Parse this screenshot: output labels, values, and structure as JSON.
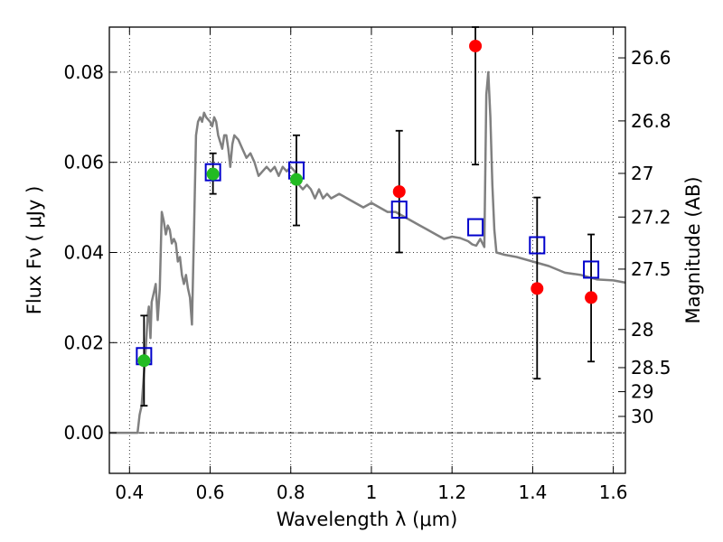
{
  "chart_data": {
    "type": "scatter",
    "title": "",
    "xlabel": "Wavelength  λ (μm)",
    "ylabel": "Flux  Fν  ( μJy )",
    "ylabel_right": "Magnitude (AB)",
    "xlim": [
      0.35,
      1.63
    ],
    "ylim": [
      -0.009,
      0.09
    ],
    "grid": true,
    "xticks": [
      0.4,
      0.6,
      0.8,
      1.0,
      1.2,
      1.4,
      1.6
    ],
    "xtick_labels": [
      "0.4",
      "0.6",
      "0.8",
      "1",
      "1.2",
      "1.4",
      "1.6"
    ],
    "yticks": [
      0.0,
      0.02,
      0.04,
      0.06,
      0.08
    ],
    "ytick_labels": [
      "0.00",
      "0.02",
      "0.04",
      "0.06",
      "0.08"
    ],
    "right_ticks": [
      {
        "label": "26.6",
        "mag": 26.6
      },
      {
        "label": "26.8",
        "mag": 26.8
      },
      {
        "label": "27",
        "mag": 27.0
      },
      {
        "label": "27.2",
        "mag": 27.2
      },
      {
        "label": "27.5",
        "mag": 27.5
      },
      {
        "label": "28",
        "mag": 28.0
      },
      {
        "label": "28.5",
        "mag": 28.5
      },
      {
        "label": "29",
        "mag": 29.0
      },
      {
        "label": "30",
        "mag": 30.0
      }
    ],
    "zero_line": 0.0,
    "series": [
      {
        "kind": "line",
        "color": "#808080",
        "points": [
          [
            0.35,
            0.0
          ],
          [
            0.42,
            0.0
          ],
          [
            0.425,
            0.004
          ],
          [
            0.43,
            0.006
          ],
          [
            0.435,
            0.012
          ],
          [
            0.44,
            0.018
          ],
          [
            0.445,
            0.026
          ],
          [
            0.448,
            0.028
          ],
          [
            0.452,
            0.021
          ],
          [
            0.455,
            0.029
          ],
          [
            0.46,
            0.031
          ],
          [
            0.465,
            0.033
          ],
          [
            0.47,
            0.025
          ],
          [
            0.475,
            0.032
          ],
          [
            0.48,
            0.049
          ],
          [
            0.485,
            0.047
          ],
          [
            0.49,
            0.044
          ],
          [
            0.495,
            0.046
          ],
          [
            0.5,
            0.045
          ],
          [
            0.505,
            0.042
          ],
          [
            0.51,
            0.043
          ],
          [
            0.515,
            0.042
          ],
          [
            0.52,
            0.038
          ],
          [
            0.525,
            0.039
          ],
          [
            0.53,
            0.035
          ],
          [
            0.535,
            0.033
          ],
          [
            0.54,
            0.035
          ],
          [
            0.545,
            0.032
          ],
          [
            0.55,
            0.03
          ],
          [
            0.555,
            0.024
          ],
          [
            0.56,
            0.045
          ],
          [
            0.565,
            0.066
          ],
          [
            0.57,
            0.069
          ],
          [
            0.575,
            0.07
          ],
          [
            0.58,
            0.069
          ],
          [
            0.585,
            0.071
          ],
          [
            0.59,
            0.07
          ],
          [
            0.6,
            0.069
          ],
          [
            0.605,
            0.068
          ],
          [
            0.61,
            0.07
          ],
          [
            0.615,
            0.069
          ],
          [
            0.62,
            0.066
          ],
          [
            0.63,
            0.063
          ],
          [
            0.635,
            0.066
          ],
          [
            0.64,
            0.066
          ],
          [
            0.645,
            0.063
          ],
          [
            0.65,
            0.059
          ],
          [
            0.655,
            0.064
          ],
          [
            0.66,
            0.066
          ],
          [
            0.67,
            0.065
          ],
          [
            0.68,
            0.063
          ],
          [
            0.69,
            0.061
          ],
          [
            0.7,
            0.062
          ],
          [
            0.71,
            0.06
          ],
          [
            0.72,
            0.057
          ],
          [
            0.73,
            0.058
          ],
          [
            0.74,
            0.059
          ],
          [
            0.75,
            0.058
          ],
          [
            0.76,
            0.059
          ],
          [
            0.77,
            0.057
          ],
          [
            0.78,
            0.059
          ],
          [
            0.79,
            0.058
          ],
          [
            0.8,
            0.059
          ],
          [
            0.81,
            0.058
          ],
          [
            0.82,
            0.055
          ],
          [
            0.83,
            0.054
          ],
          [
            0.84,
            0.055
          ],
          [
            0.85,
            0.054
          ],
          [
            0.86,
            0.052
          ],
          [
            0.87,
            0.054
          ],
          [
            0.88,
            0.052
          ],
          [
            0.89,
            0.053
          ],
          [
            0.9,
            0.052
          ],
          [
            0.92,
            0.053
          ],
          [
            0.94,
            0.052
          ],
          [
            0.96,
            0.051
          ],
          [
            0.98,
            0.05
          ],
          [
            1.0,
            0.051
          ],
          [
            1.02,
            0.05
          ],
          [
            1.04,
            0.049
          ],
          [
            1.06,
            0.049
          ],
          [
            1.08,
            0.048
          ],
          [
            1.1,
            0.047
          ],
          [
            1.12,
            0.046
          ],
          [
            1.14,
            0.045
          ],
          [
            1.16,
            0.044
          ],
          [
            1.18,
            0.043
          ],
          [
            1.2,
            0.0435
          ],
          [
            1.22,
            0.0432
          ],
          [
            1.24,
            0.0425
          ],
          [
            1.25,
            0.0418
          ],
          [
            1.26,
            0.0415
          ],
          [
            1.27,
            0.043
          ],
          [
            1.28,
            0.0412
          ],
          [
            1.285,
            0.075
          ],
          [
            1.29,
            0.08
          ],
          [
            1.295,
            0.07
          ],
          [
            1.3,
            0.055
          ],
          [
            1.305,
            0.045
          ],
          [
            1.31,
            0.04
          ],
          [
            1.33,
            0.0395
          ],
          [
            1.36,
            0.039
          ],
          [
            1.4,
            0.038
          ],
          [
            1.44,
            0.037
          ],
          [
            1.48,
            0.0355
          ],
          [
            1.52,
            0.035
          ],
          [
            1.56,
            0.034
          ],
          [
            1.6,
            0.0338
          ],
          [
            1.63,
            0.0333
          ]
        ]
      },
      {
        "kind": "errorbar",
        "color": "#000000",
        "points": [
          {
            "x": 0.436,
            "ylo": 0.006,
            "yhi": 0.026
          },
          {
            "x": 0.607,
            "ylo": 0.053,
            "yhi": 0.062
          },
          {
            "x": 0.814,
            "ylo": 0.046,
            "yhi": 0.066
          },
          {
            "x": 1.069,
            "ylo": 0.04,
            "yhi": 0.067
          },
          {
            "x": 1.258,
            "ylo": 0.0595,
            "yhi": 0.09
          },
          {
            "x": 1.411,
            "ylo": 0.012,
            "yhi": 0.0522
          },
          {
            "x": 1.545,
            "ylo": 0.0158,
            "yhi": 0.044
          }
        ]
      },
      {
        "kind": "squares",
        "color": "#0000cc",
        "points": [
          [
            0.436,
            0.017
          ],
          [
            0.607,
            0.0578
          ],
          [
            0.814,
            0.0582
          ],
          [
            1.069,
            0.0495
          ],
          [
            1.258,
            0.0456
          ],
          [
            1.411,
            0.0416
          ],
          [
            1.545,
            0.0362
          ]
        ]
      },
      {
        "kind": "dots",
        "color": "#22bb22",
        "points": [
          [
            0.436,
            0.016
          ],
          [
            0.607,
            0.0574
          ],
          [
            0.814,
            0.0562
          ]
        ]
      },
      {
        "kind": "dots",
        "color": "#ff0000",
        "points": [
          [
            1.069,
            0.0535
          ],
          [
            1.258,
            0.0858
          ],
          [
            1.411,
            0.032
          ],
          [
            1.545,
            0.03
          ]
        ]
      }
    ]
  }
}
